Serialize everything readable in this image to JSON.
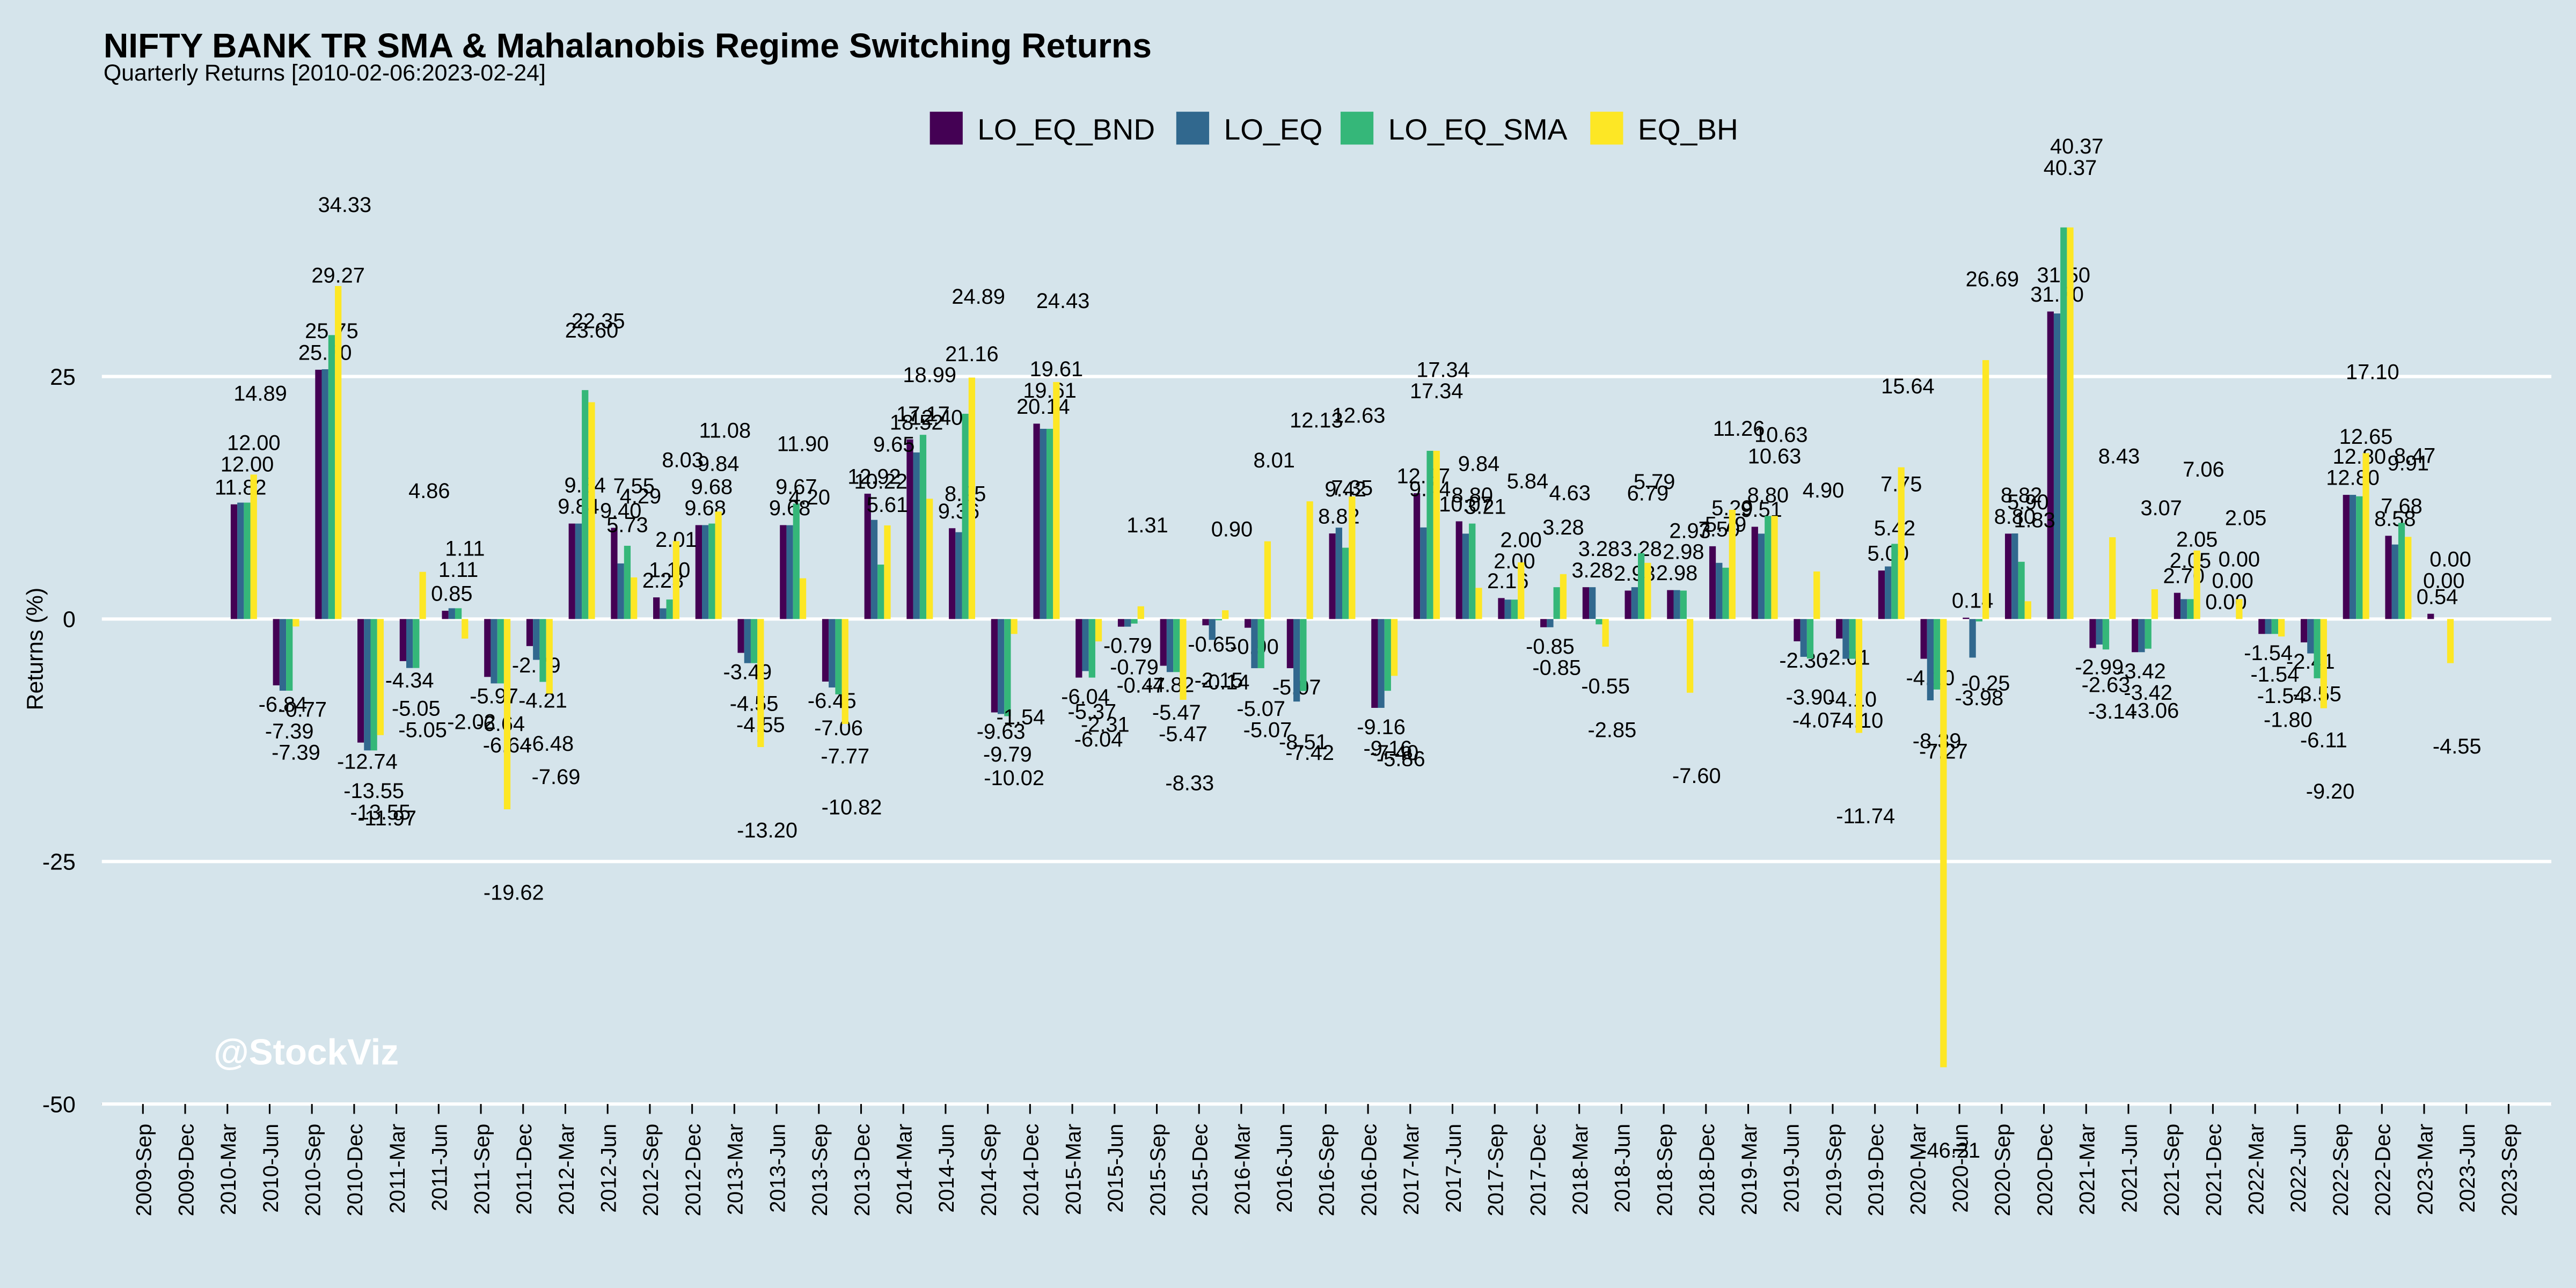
{
  "chart_data": {
    "type": "bar",
    "title": "NIFTY BANK TR SMA & Mahalanobis Regime Switching Returns",
    "subtitle": "Quarterly Returns [2010-02-06:2023-02-24]",
    "y_label": "Returns (%)",
    "watermark": "@StockViz",
    "legend": "top",
    "grid": true,
    "ylim": [
      -50,
      44
    ],
    "yticks": [
      -50,
      -25,
      0,
      25
    ],
    "categories": [
      "2009-Sep",
      "2009-Dec",
      "2010-Mar",
      "2010-Jun",
      "2010-Sep",
      "2010-Dec",
      "2011-Mar",
      "2011-Jun",
      "2011-Sep",
      "2011-Dec",
      "2012-Mar",
      "2012-Jun",
      "2012-Sep",
      "2012-Dec",
      "2013-Mar",
      "2013-Jun",
      "2013-Sep",
      "2013-Dec",
      "2014-Mar",
      "2014-Jun",
      "2014-Sep",
      "2014-Dec",
      "2015-Mar",
      "2015-Jun",
      "2015-Sep",
      "2015-Dec",
      "2016-Mar",
      "2016-Jun",
      "2016-Sep",
      "2016-Dec",
      "2017-Mar",
      "2017-Jun",
      "2017-Sep",
      "2017-Dec",
      "2018-Mar",
      "2018-Jun",
      "2018-Sep",
      "2018-Dec",
      "2019-Mar",
      "2019-Jun",
      "2019-Sep",
      "2019-Dec",
      "2020-Mar",
      "2020-Jun",
      "2020-Sep",
      "2020-Dec",
      "2021-Mar",
      "2021-Jun",
      "2021-Sep",
      "2021-Dec",
      "2022-Mar",
      "2022-Jun",
      "2022-Sep",
      "2022-Dec",
      "2023-Mar",
      "2023-Jun",
      "2023-Sep"
    ],
    "series": [
      {
        "name": "LO_EQ_BND",
        "color": "#440154",
        "values": [
          null,
          null,
          11.82,
          -6.84,
          25.7,
          -12.74,
          -4.34,
          0.85,
          -5.97,
          -2.79,
          9.84,
          9.4,
          2.23,
          9.68,
          -3.49,
          9.68,
          -6.45,
          12.92,
          18.52,
          9.36,
          -9.63,
          20.14,
          -6.04,
          -0.79,
          -4.82,
          -0.65,
          -0.9,
          -5.07,
          8.82,
          -9.16,
          12.97,
          10.07,
          2.16,
          -0.85,
          3.28,
          2.93,
          2.98,
          7.5,
          9.51,
          -2.3,
          -2.01,
          5.0,
          -4.1,
          0.14,
          8.8,
          31.7,
          -2.99,
          -3.42,
          2.7,
          0.0,
          -1.54,
          -2.41,
          12.8,
          8.58,
          0.54,
          null,
          null
        ],
        "value_labels": [
          null,
          null,
          "11.82",
          "-6.84",
          "25.70",
          "-12.74",
          "-4.34",
          "0.85",
          "-5.97",
          "-2.79",
          "9.84",
          "9.40",
          "2.23",
          "9.68",
          "-3.49",
          "9.68",
          "-6.45",
          "12.92",
          "18.52",
          "9.36",
          "-9.63",
          "20.14",
          "-6.04",
          "-0.79",
          "-4.82",
          "-0.65",
          "-0.90",
          "-5.07",
          "8.82",
          "-9.16",
          "12.97",
          "10.07",
          "2.16",
          "-0.85",
          "3.28",
          "2.93",
          "2.98",
          "7.50",
          "9.51",
          "-2.30",
          "-2.01",
          "5.00",
          "-4.10",
          "0.14",
          "8.80",
          "31.70",
          "-2.99",
          "-3.42",
          "2.70",
          "0.00",
          "-1.54",
          "-2.41",
          "12.80",
          "8.58",
          "0.54",
          null,
          null
        ]
      },
      {
        "name": "LO_EQ",
        "color": "#31688e",
        "values": [
          null,
          null,
          12.0,
          -7.39,
          25.75,
          -13.55,
          -5.05,
          1.11,
          -6.64,
          -4.21,
          9.84,
          5.73,
          1.1,
          9.68,
          -4.55,
          9.67,
          -7.06,
          10.22,
          17.17,
          8.95,
          -9.79,
          19.61,
          -5.37,
          -0.79,
          -5.47,
          -2.15,
          -5.07,
          -8.51,
          9.42,
          -9.16,
          9.44,
          8.8,
          2.0,
          -0.85,
          3.28,
          3.28,
          2.98,
          5.79,
          8.8,
          -3.9,
          -4.1,
          5.42,
          -8.39,
          -3.98,
          8.82,
          31.5,
          -2.63,
          -3.42,
          2.05,
          0.0,
          -1.54,
          -3.55,
          12.8,
          7.68,
          0.0,
          null,
          null
        ],
        "value_labels": [
          null,
          null,
          "12.00",
          "-7.39",
          "25.75",
          "-13.55",
          "-5.05",
          "1.11",
          "-6.64",
          "-4.21",
          "9.84",
          "5.73",
          "1.10",
          "9.68",
          "-4.55",
          "9.67",
          "-7.06",
          "10.22",
          "17.17",
          "8.95",
          "-9.79",
          "19.61",
          "-5.37",
          "-0.79",
          "-5.47",
          "-2.15",
          "-5.07",
          "-8.51",
          "9.42",
          "-9.16",
          "9.44",
          "8.80",
          "2.00",
          "-0.85",
          "3.28",
          "3.28",
          "2.98",
          "5.79",
          "8.80",
          "-3.90",
          "-4.10",
          "5.42",
          "-8.39",
          "-3.98",
          "8.82",
          "31.50",
          "-2.63",
          "-3.42",
          "2.05",
          "0.00",
          "-1.54",
          "-3.55",
          "12.80",
          "7.68",
          "0.00",
          null,
          null
        ]
      },
      {
        "name": "LO_EQ_SMA",
        "color": "#35b779",
        "values": [
          null,
          null,
          12.0,
          -7.39,
          29.27,
          -13.55,
          -5.05,
          1.11,
          -6.64,
          -6.48,
          23.6,
          7.55,
          2.01,
          9.84,
          -4.55,
          11.9,
          -7.77,
          5.61,
          18.99,
          21.16,
          -10.02,
          19.61,
          -6.04,
          -0.47,
          -5.47,
          -0.14,
          -5.07,
          -7.42,
          7.35,
          -7.4,
          17.34,
          9.84,
          2.0,
          3.28,
          -0.55,
          6.79,
          2.93,
          5.29,
          10.63,
          -4.07,
          -4.1,
          7.75,
          -7.27,
          -0.25,
          5.9,
          40.37,
          -3.14,
          -3.06,
          2.05,
          0.0,
          -1.54,
          -6.11,
          12.65,
          9.91,
          0.0,
          null,
          null
        ],
        "value_labels": [
          null,
          null,
          "12.00",
          "-7.39",
          "29.27",
          "-13.55",
          "-5.05",
          "1.11",
          "-6.64",
          "-6.48",
          "23.60",
          "7.55",
          "2.01",
          "9.84",
          "-4.55",
          "11.90",
          "-7.77",
          "5.61",
          "18.99",
          "21.16",
          "-10.02",
          "19.61",
          "-6.04",
          "-0.47",
          "-5.47",
          "-0.14",
          "-5.07",
          "-7.42",
          "7.35",
          "-7.40",
          "17.34",
          "9.84",
          "2.00",
          "3.28",
          "-0.55",
          "6.79",
          "2.93",
          "5.29",
          "10.63",
          "-4.07",
          "-4.10",
          "7.75",
          "-7.27",
          "-0.25",
          "5.90",
          "40.37",
          "-3.14",
          "-3.06",
          "2.05",
          "0.00",
          "-1.54",
          "-6.11",
          "12.65",
          "9.91",
          "0.00",
          null,
          null
        ]
      },
      {
        "name": "EQ_BH",
        "color": "#fde725",
        "values": [
          null,
          null,
          14.89,
          -0.77,
          34.33,
          -11.97,
          4.86,
          -2.02,
          -19.62,
          -7.69,
          22.35,
          4.29,
          8.03,
          11.08,
          -13.2,
          4.2,
          -10.82,
          9.65,
          12.4,
          24.89,
          -1.54,
          24.43,
          -2.31,
          1.31,
          -8.33,
          0.9,
          8.01,
          12.13,
          12.63,
          -5.86,
          17.34,
          3.21,
          5.84,
          4.63,
          -2.85,
          5.79,
          -7.6,
          11.26,
          10.63,
          4.9,
          -11.74,
          15.64,
          -46.21,
          26.69,
          1.83,
          40.37,
          8.43,
          3.07,
          7.06,
          2.05,
          -1.8,
          -9.2,
          17.1,
          8.47,
          -4.55,
          null,
          null
        ],
        "value_labels": [
          null,
          null,
          "14.89",
          "-0.77",
          "34.33",
          "-11.97",
          "4.86",
          "-2.02",
          "-19.62",
          "-7.69",
          "22.35",
          "4.29",
          "8.03",
          "11.08",
          "-13.20",
          "4.20",
          "-10.82",
          "9.65",
          "12.40",
          "24.89",
          "-1.54",
          "24.43",
          "-2.31",
          "1.31",
          "-8.33",
          "0.90",
          "8.01",
          "12.13",
          "12.63",
          "-5.86",
          "17.34",
          "3.21",
          "5.84",
          "4.63",
          "-2.85",
          "5.79",
          "-7.60",
          "11.26",
          "10.63",
          "4.90",
          "-11.74",
          "15.64",
          "-46.21",
          "26.69",
          "1.83",
          "40.37",
          "8.43",
          "3.07",
          "7.06",
          "2.05",
          "-1.80",
          "-9.20",
          "17.10",
          "8.47",
          "-4.55",
          null,
          null
        ]
      }
    ]
  }
}
